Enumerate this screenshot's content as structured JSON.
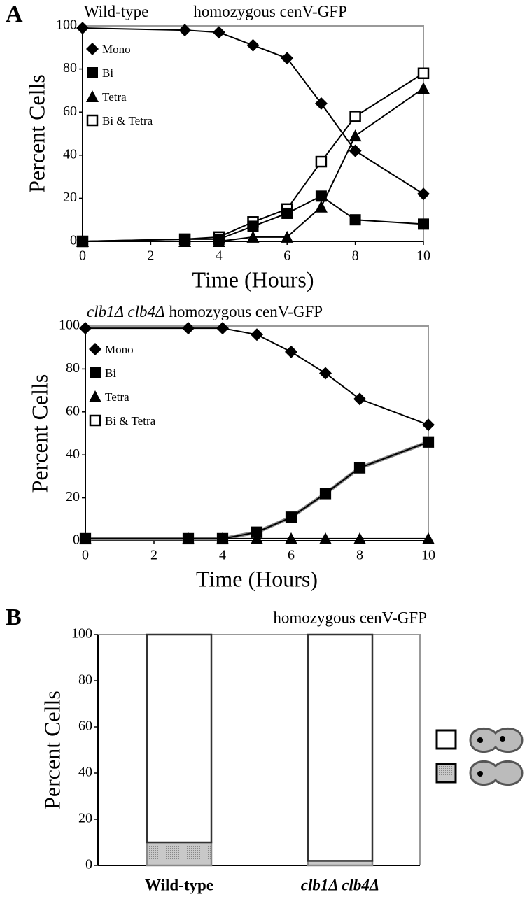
{
  "chart_data": [
    {
      "type": "line",
      "panel": "A",
      "genotype": "Wild-type",
      "title": "homozygous cenV-GFP",
      "x_label": "Time (Hours)",
      "y_label": "Percent Cells",
      "x": [
        0,
        3,
        4,
        5,
        6,
        7,
        8,
        10
      ],
      "series": [
        {
          "name": "Mono",
          "color": "#000000",
          "marker": "diamond",
          "values": [
            99,
            98,
            97,
            91,
            85,
            64,
            42,
            22
          ]
        },
        {
          "name": "Bi",
          "color": "#000000",
          "marker": "square",
          "values": [
            0,
            1,
            1,
            7,
            13,
            21,
            10,
            8
          ]
        },
        {
          "name": "Tetra",
          "color": "#000000",
          "marker": "triangle",
          "values": [
            0,
            0,
            0,
            2,
            2,
            16,
            49,
            71
          ]
        },
        {
          "name": "Bi & Tetra",
          "color": "#000000",
          "marker": "open-square",
          "values": [
            0,
            1,
            2,
            9,
            15,
            37,
            58,
            78
          ]
        }
      ],
      "xlim": [
        0,
        10
      ],
      "xticks": [
        0,
        2,
        4,
        6,
        8,
        10
      ],
      "ylim": [
        0,
        100
      ],
      "yticks": [
        0,
        20,
        40,
        60,
        80,
        100
      ]
    },
    {
      "type": "line",
      "genotype": "clb1Δ clb4Δ",
      "title": "homozygous cenV-GFP",
      "x_label": "Time (Hours)",
      "y_label": "Percent Cells",
      "x": [
        0,
        3,
        4,
        5,
        6,
        7,
        8,
        10
      ],
      "series": [
        {
          "name": "Mono",
          "color": "#000000",
          "marker": "diamond",
          "values": [
            99,
            99,
            99,
            96,
            88,
            78,
            66,
            54
          ]
        },
        {
          "name": "Bi",
          "color": "#000000",
          "marker": "square",
          "values": [
            1,
            1,
            1,
            4,
            11,
            22,
            34,
            46
          ]
        },
        {
          "name": "Tetra",
          "color": "#000000",
          "marker": "triangle",
          "values": [
            1,
            1,
            1,
            1,
            1,
            1,
            1,
            1
          ]
        },
        {
          "name": "Bi & Tetra",
          "color": "#888888",
          "marker": "open-square",
          "values": [
            1,
            1,
            1,
            4,
            11,
            22,
            34,
            46
          ]
        }
      ],
      "xlim": [
        0,
        10
      ],
      "xticks": [
        0,
        2,
        4,
        6,
        8,
        10
      ],
      "ylim": [
        0,
        100
      ],
      "yticks": [
        0,
        20,
        40,
        60,
        80,
        100
      ]
    },
    {
      "type": "stacked-bar",
      "panel": "B",
      "title": "homozygous cenV-GFP",
      "y_label": "Percent Cells",
      "categories": [
        "Wild-type",
        "clb1Δ clb4Δ"
      ],
      "series": [
        {
          "color": "#bdbdbd",
          "values": [
            10,
            2
          ]
        },
        {
          "color": "#ffffff",
          "values": [
            90,
            98
          ]
        }
      ],
      "ylim": [
        0,
        100
      ],
      "yticks": [
        0,
        20,
        40,
        60,
        80,
        100
      ]
    }
  ]
}
